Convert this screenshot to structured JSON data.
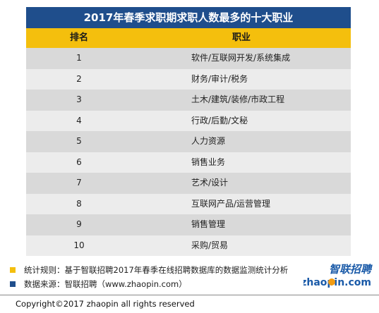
{
  "table": {
    "title": "2017年春季求职期求职人数最多的十大职业",
    "header": {
      "rank": "排名",
      "job": "职业"
    },
    "rows": [
      {
        "rank": "1",
        "job": "软件/互联网开发/系统集成"
      },
      {
        "rank": "2",
        "job": "财务/审计/税务"
      },
      {
        "rank": "3",
        "job": "土木/建筑/装修/市政工程"
      },
      {
        "rank": "4",
        "job": "行政/后勤/文秘"
      },
      {
        "rank": "5",
        "job": "人力资源"
      },
      {
        "rank": "6",
        "job": "销售业务"
      },
      {
        "rank": "7",
        "job": "艺术/设计"
      },
      {
        "rank": "8",
        "job": "互联网产品/运营管理"
      },
      {
        "rank": "9",
        "job": "销售管理"
      },
      {
        "rank": "10",
        "job": "采购/贸易"
      }
    ]
  },
  "notes": {
    "rule": "统计规则：基于智联招聘2017年春季在线招聘数据库的数据监测统计分析",
    "source": "数据来源：智联招聘（www.zhaopin.com）"
  },
  "logo": {
    "cn": "智联招聘",
    "en": "zhaopin.com"
  },
  "copyright": "Copyright©2017 zhaopin all rights reserved",
  "colors": {
    "title_bg": "#1f4e8c",
    "header_bg": "#f4bf0d",
    "rule_marker": "#f4bf0d",
    "source_marker": "#1f4e8c",
    "logo_blue": "#1a5aa8",
    "logo_orange": "#f39c12"
  }
}
